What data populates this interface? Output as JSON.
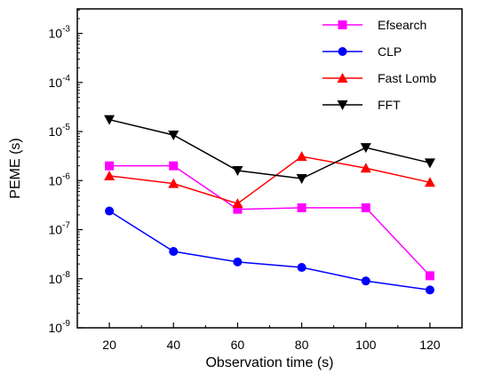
{
  "chart_data": {
    "type": "line",
    "xlabel": "Observation time (s)",
    "ylabel": "PEME (s)",
    "x": [
      20,
      40,
      60,
      80,
      100,
      120
    ],
    "xlim": [
      10,
      130
    ],
    "ylim_log10": [
      -9,
      -2.5
    ],
    "yscale": "log",
    "xticks": [
      20,
      40,
      60,
      80,
      100,
      120
    ],
    "yticks": [
      {
        "base": "10",
        "exp": "-9"
      },
      {
        "base": "10",
        "exp": "-8"
      },
      {
        "base": "10",
        "exp": "-7"
      },
      {
        "base": "10",
        "exp": "-6"
      },
      {
        "base": "10",
        "exp": "-5"
      },
      {
        "base": "10",
        "exp": "-4"
      },
      {
        "base": "10",
        "exp": "-3"
      }
    ],
    "legend_position": "top-right",
    "grid": false,
    "series": [
      {
        "name": "Efsearch",
        "color": "#ff00ff",
        "marker": "square",
        "values": [
          2e-06,
          2e-06,
          2.6e-07,
          2.8e-07,
          2.8e-07,
          1.15e-08
        ]
      },
      {
        "name": "CLP",
        "color": "#0000ff",
        "marker": "circle",
        "values": [
          2.4e-07,
          3.6e-08,
          2.2e-08,
          1.7e-08,
          9e-09,
          5.9e-09
        ]
      },
      {
        "name": "Fast Lomb",
        "color": "#ff0000",
        "marker": "triangle-up",
        "values": [
          1.25e-06,
          8.7e-07,
          3.4e-07,
          3.1e-06,
          1.8e-06,
          9.2e-07
        ]
      },
      {
        "name": "FFT",
        "color": "#000000",
        "marker": "triangle-down",
        "values": [
          1.75e-05,
          8.5e-06,
          1.6e-06,
          1.1e-06,
          4.7e-06,
          2.3e-06
        ]
      }
    ]
  }
}
